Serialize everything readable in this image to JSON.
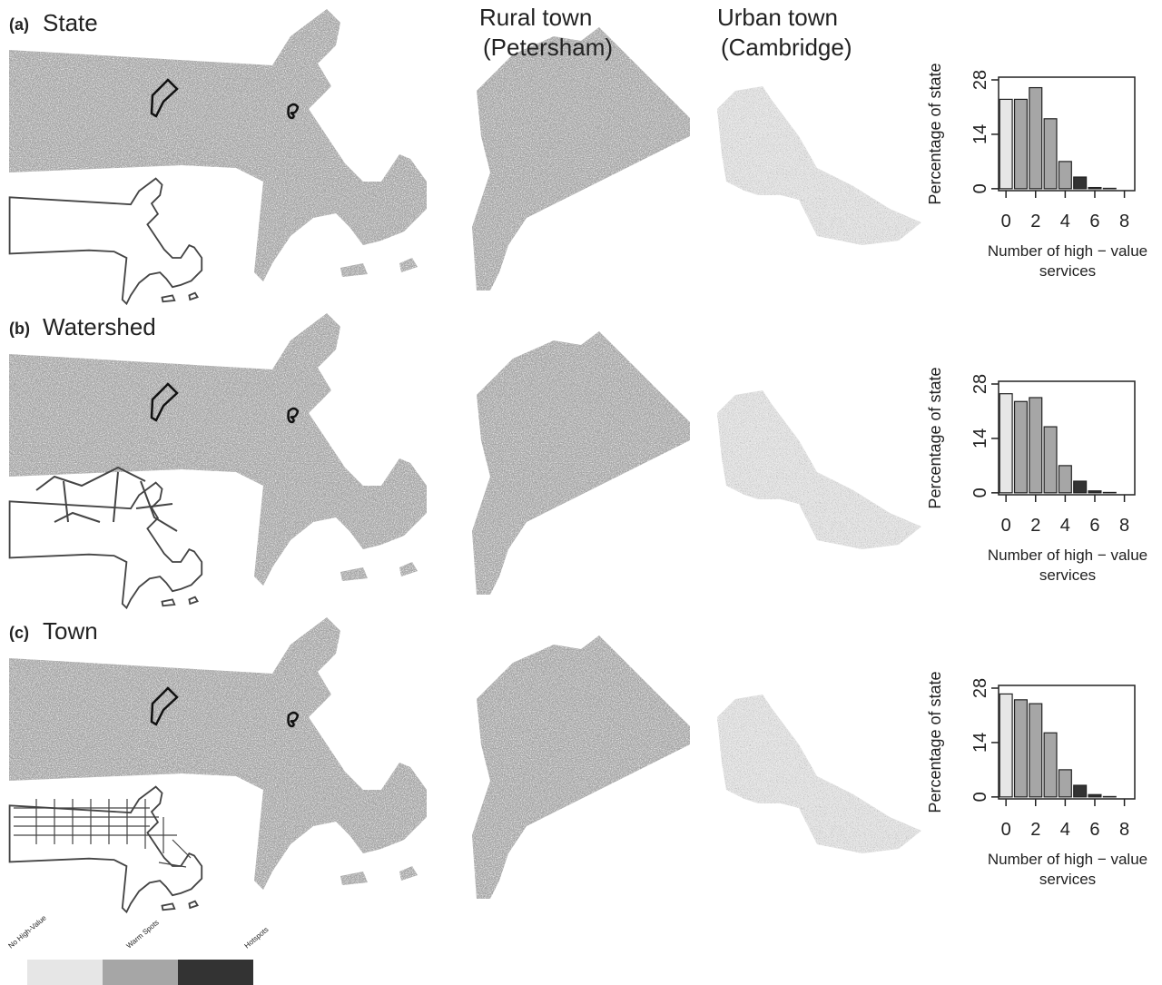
{
  "panels": [
    {
      "label": "(a)",
      "title": "State"
    },
    {
      "label": "(b)",
      "title": "Watershed"
    },
    {
      "label": "(c)",
      "title": "Town"
    }
  ],
  "columns": [
    {
      "lines": [
        "Rural town",
        "(Petersham)"
      ]
    },
    {
      "lines": [
        "Urban town",
        "(Cambridge)"
      ]
    }
  ],
  "legend": {
    "items": [
      {
        "label": "No High-Value",
        "color": "#e6e6e6"
      },
      {
        "label": "Warm Spots",
        "color": "#a6a6a6"
      },
      {
        "label": "Hotspots",
        "color": "#333333"
      }
    ]
  },
  "chart_data": [
    {
      "type": "bar",
      "ylabel": "Percentage of state",
      "xlabel": [
        "Number of high − value",
        "services"
      ],
      "x": [
        0,
        1,
        2,
        3,
        4,
        5,
        6,
        7,
        8
      ],
      "values": [
        23,
        23,
        26,
        18,
        7,
        3,
        0.3,
        0.1,
        0
      ],
      "colors": [
        "#e6e6e6",
        "#a6a6a6",
        "#a6a6a6",
        "#a6a6a6",
        "#a6a6a6",
        "#333333",
        "#333333",
        "#333333",
        "#333333"
      ],
      "xlim": [
        -0.5,
        8.7
      ],
      "xticks": [
        0,
        2,
        4,
        6,
        8
      ],
      "ylim": [
        -0.5,
        28.7
      ],
      "yticks": [
        0,
        14,
        28
      ]
    },
    {
      "type": "bar",
      "ylabel": "Percentage of state",
      "xlabel": [
        "Number of high − value",
        "services"
      ],
      "x": [
        0,
        1,
        2,
        3,
        4,
        5,
        6,
        7,
        8
      ],
      "values": [
        25.5,
        23.5,
        24.5,
        17,
        7,
        3,
        0.5,
        0.1,
        0
      ],
      "colors": [
        "#e6e6e6",
        "#a6a6a6",
        "#a6a6a6",
        "#a6a6a6",
        "#a6a6a6",
        "#333333",
        "#333333",
        "#333333",
        "#333333"
      ],
      "xlim": [
        -0.5,
        8.7
      ],
      "xticks": [
        0,
        2,
        4,
        6,
        8
      ],
      "ylim": [
        -0.5,
        28.7
      ],
      "yticks": [
        0,
        14,
        28
      ]
    },
    {
      "type": "bar",
      "ylabel": "Percentage of state",
      "xlabel": [
        "Number of high − value",
        "services"
      ],
      "x": [
        0,
        1,
        2,
        3,
        4,
        5,
        6,
        7,
        8
      ],
      "values": [
        26.5,
        25,
        24,
        16.5,
        7,
        3,
        0.6,
        0.1,
        0
      ],
      "colors": [
        "#e6e6e6",
        "#a6a6a6",
        "#a6a6a6",
        "#a6a6a6",
        "#a6a6a6",
        "#333333",
        "#333333",
        "#333333",
        "#333333"
      ],
      "xlim": [
        -0.5,
        8.7
      ],
      "xticks": [
        0,
        2,
        4,
        6,
        8
      ],
      "ylim": [
        -0.5,
        28.7
      ],
      "yticks": [
        0,
        14,
        28
      ]
    }
  ]
}
